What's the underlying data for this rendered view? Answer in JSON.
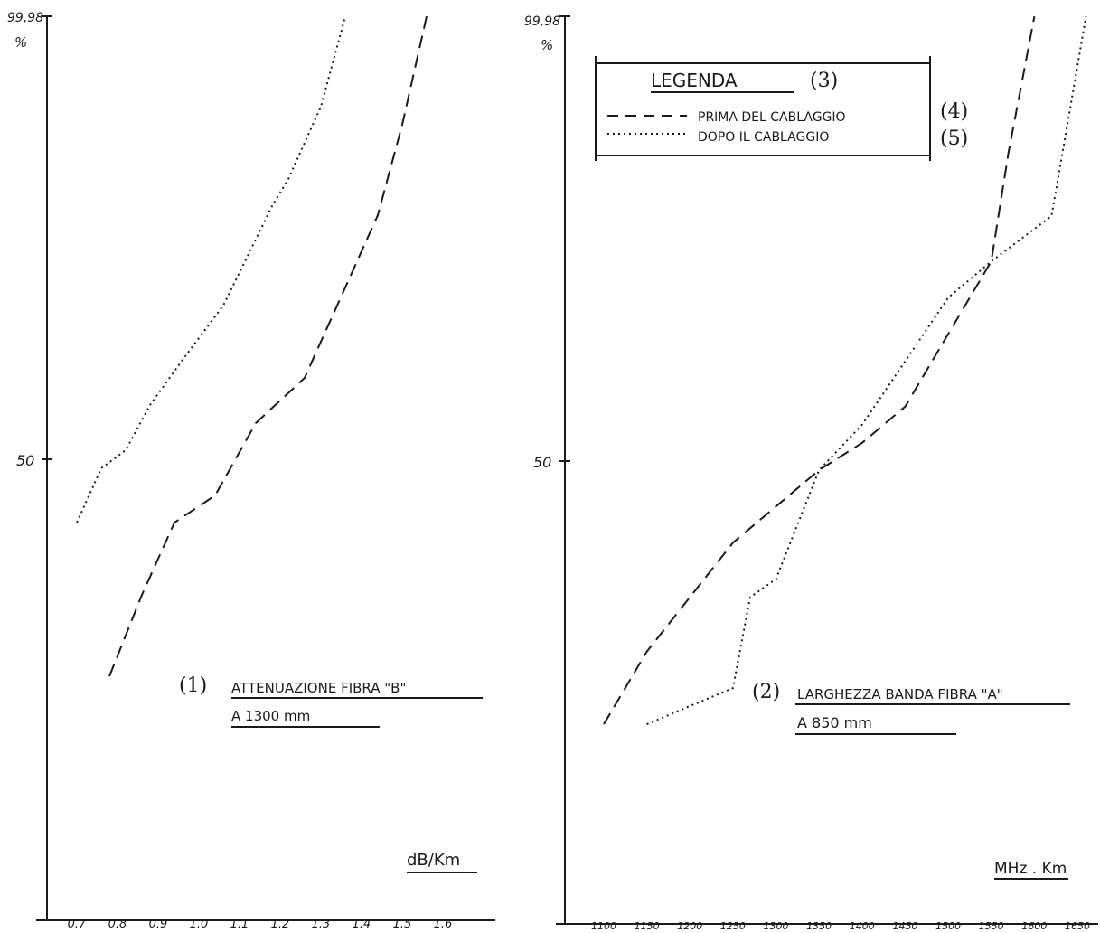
{
  "chart_data": [
    {
      "type": "line",
      "annotation_number": "(1)",
      "title_line1": "ATTENUAZIONE FIBRA \"B\"",
      "title_line2": "A 1300 mm",
      "unit_label": "dB/Km",
      "y_top_label": "99,98",
      "y_top_unit": "%",
      "y_mid_label": "50",
      "x_tick_labels": [
        "0.7",
        "0.8",
        "0.9",
        "1.0",
        "1.1",
        "1.2",
        "1.3",
        "1.4",
        "1.5",
        "1.6"
      ],
      "xlim": [
        0.7,
        1.6
      ],
      "ylim": [
        0,
        100
      ],
      "grid": false,
      "series": [
        {
          "style": "dashed",
          "x": [
            0.78,
            0.86,
            0.94,
            1.04,
            1.14,
            1.26,
            1.36,
            1.44,
            1.5,
            1.56
          ],
          "y": [
            27,
            36,
            44,
            47,
            55,
            60,
            70,
            78,
            88,
            99.98
          ]
        },
        {
          "style": "dotted",
          "x": [
            0.7,
            0.76,
            0.82,
            0.88,
            0.96,
            1.06,
            1.18,
            1.22,
            1.3,
            1.36
          ],
          "y": [
            44,
            50,
            52,
            57,
            62,
            68,
            79,
            82,
            90,
            99.98
          ]
        }
      ]
    },
    {
      "type": "line",
      "annotation_number": "(2)",
      "title_line1": "LARGHEZZA BANDA FIBRA \"A\"",
      "title_line2": "A 850 mm",
      "unit_label": "MHz . Km",
      "y_top_label": "99,98",
      "y_top_unit": "%",
      "y_mid_label": "50",
      "x_tick_labels": [
        "1100",
        "1150",
        "1200",
        "1250",
        "1300",
        "1350",
        "1400",
        "1450",
        "1500",
        "1550",
        "1600",
        "1650"
      ],
      "xlim": [
        1100,
        1650
      ],
      "ylim": [
        0,
        100
      ],
      "grid": false,
      "legend": {
        "title": "LEGENDA",
        "title_number": "(3)",
        "entries": [
          {
            "label": "PRIMA DEL CABLAGGIO",
            "number": "(4)",
            "style": "dashed"
          },
          {
            "label": "DOPO IL CABLAGGIO",
            "number": "(5)",
            "style": "dotted"
          }
        ]
      },
      "series": [
        {
          "style": "dashed",
          "x": [
            1100,
            1150,
            1200,
            1250,
            1300,
            1350,
            1400,
            1450,
            1500,
            1550,
            1570,
            1600
          ],
          "y": [
            22,
            30,
            36,
            42,
            46,
            50,
            53,
            57,
            65,
            73,
            85,
            99.98
          ]
        },
        {
          "style": "dotted",
          "x": [
            1150,
            1200,
            1250,
            1270,
            1300,
            1350,
            1400,
            1450,
            1500,
            1550,
            1620,
            1660
          ],
          "y": [
            22,
            24,
            26,
            36,
            38,
            50,
            55,
            62,
            69,
            73,
            78,
            99.98
          ]
        }
      ]
    }
  ]
}
